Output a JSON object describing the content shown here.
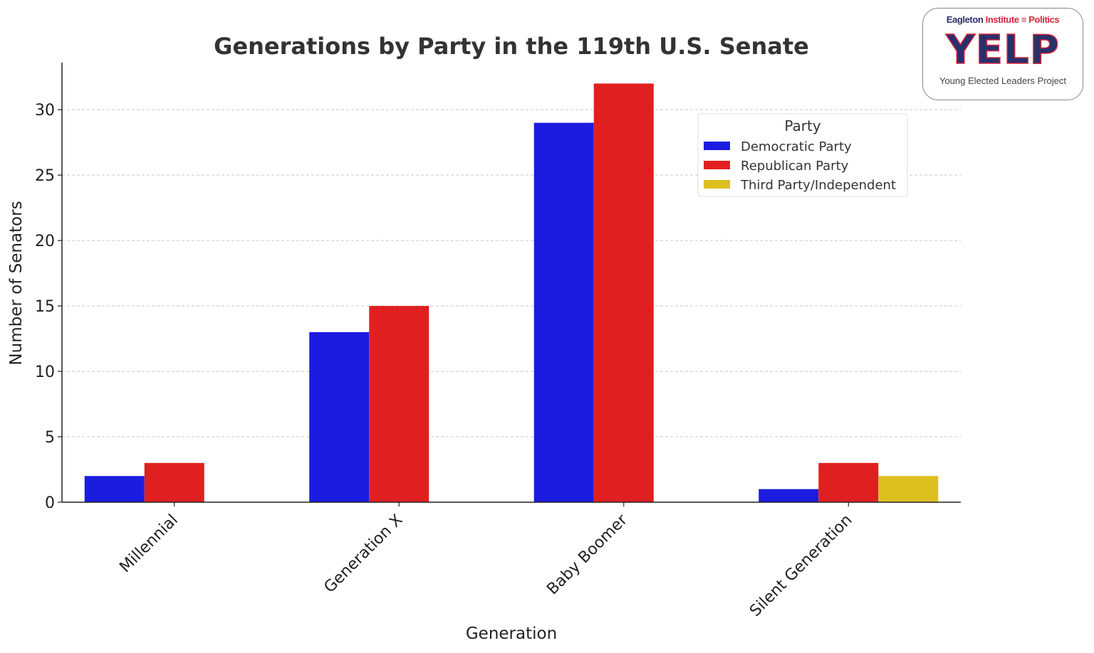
{
  "chart_data": {
    "type": "bar",
    "title": "Generations by Party in the 119th U.S. Senate",
    "xlabel": "Generation",
    "ylabel": "Number of Senators",
    "categories": [
      "Millennial",
      "Generation X",
      "Baby Boomer",
      "Silent Generation"
    ],
    "series": [
      {
        "name": "Democratic Party",
        "color": "#1c1ce0",
        "values": [
          2,
          13,
          29,
          1
        ]
      },
      {
        "name": "Republican Party",
        "color": "#e02020",
        "values": [
          3,
          15,
          32,
          3
        ]
      },
      {
        "name": "Third Party/Independent",
        "color": "#dcc020",
        "values": [
          0,
          0,
          0,
          2
        ]
      }
    ],
    "ylim": [
      0,
      33.6
    ],
    "yticks": [
      0,
      5,
      10,
      15,
      20,
      25,
      30
    ],
    "grid": "horizontal dashed",
    "legend": {
      "title": "Party",
      "placement": "top-right"
    }
  },
  "logo": {
    "line1_a": "Eagleton",
    "line1_b": "Institute",
    "line1_c": "Politics",
    "wordmark": "YELP",
    "subtitle": "Young Elected Leaders Project"
  }
}
